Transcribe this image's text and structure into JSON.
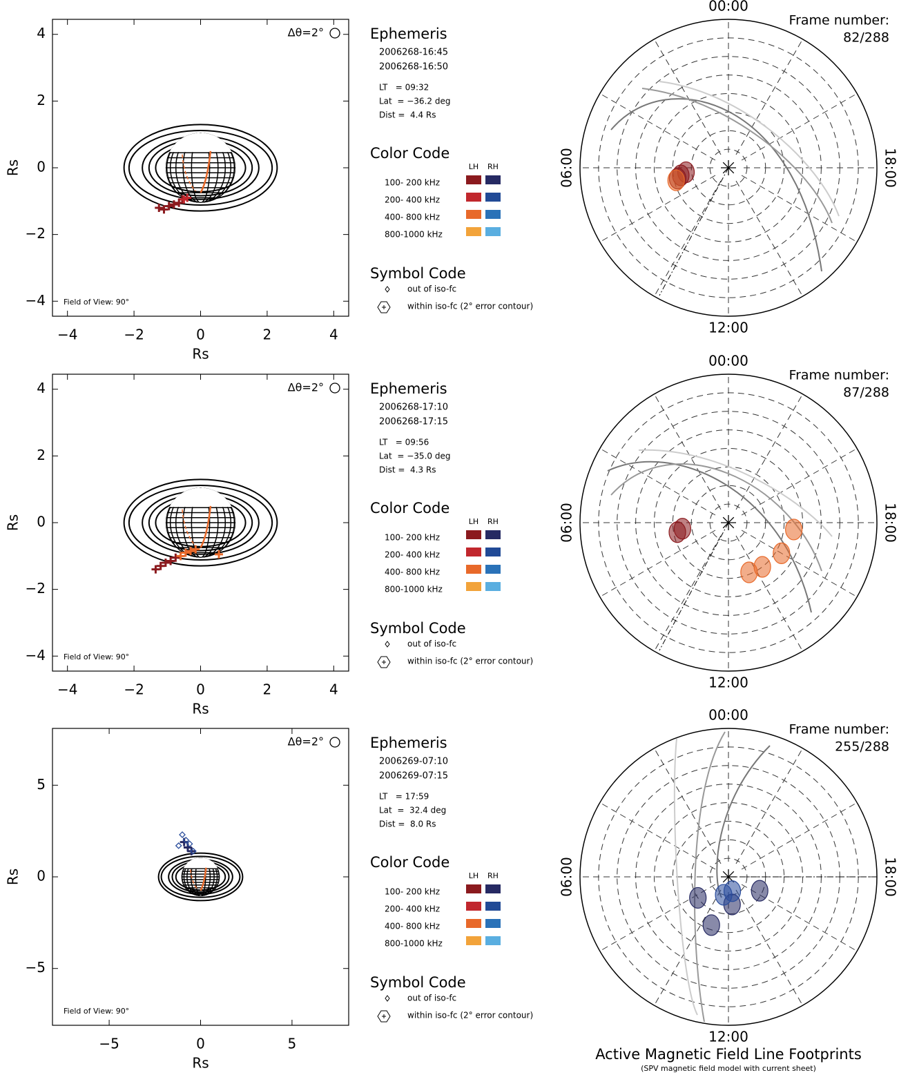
{
  "chart_data": [
    {
      "type": "scatter",
      "x_label": "Rs",
      "y_label": "Rs",
      "xlim": [
        -4.45,
        4.45
      ],
      "ylim": [
        -4.45,
        4.45
      ],
      "xticks": [
        {
          "value": -4,
          "label": "−4"
        },
        {
          "value": -2,
          "label": "−2"
        },
        0,
        2,
        4
      ],
      "yticks": [
        {
          "value": -4,
          "label": "−4"
        },
        {
          "value": -2,
          "label": "−2"
        },
        0,
        2,
        4
      ],
      "series": [
        {
          "color": "#8b1a1e",
          "marker": "plus",
          "x": [
            -1.25,
            -1.1,
            -0.95,
            -0.8,
            -0.65,
            -0.55
          ],
          "values": [
            -1.2,
            -1.25,
            -1.15,
            -1.1,
            -1.05,
            -0.95
          ]
        },
        {
          "color": "#c1272d",
          "marker": "plus",
          "x": [
            -0.5,
            -0.4
          ],
          "values": [
            -0.95,
            -0.9
          ]
        }
      ]
    },
    {
      "type": "scatter",
      "x_label": "Rs",
      "y_label": "Rs",
      "xlim": [
        -4.45,
        4.45
      ],
      "ylim": [
        -4.45,
        4.45
      ],
      "xticks": [
        {
          "value": -4,
          "label": "−4"
        },
        {
          "value": -2,
          "label": "−2"
        },
        0,
        2,
        4
      ],
      "yticks": [
        {
          "value": -4,
          "label": "−4"
        },
        {
          "value": -2,
          "label": "−2"
        },
        0,
        2,
        4
      ],
      "series": [
        {
          "color": "#8b1a1e",
          "marker": "plus",
          "x": [
            -1.35,
            -1.2,
            -1.05,
            -0.9,
            -0.75
          ],
          "values": [
            -1.4,
            -1.3,
            -1.2,
            -1.15,
            -1.05
          ]
        },
        {
          "color": "#e8692a",
          "marker": "plus",
          "x": [
            -0.6,
            -0.45,
            -0.3,
            -0.15,
            0.55
          ],
          "values": [
            -1.0,
            -0.9,
            -0.85,
            -0.8,
            -0.95
          ]
        }
      ]
    },
    {
      "type": "scatter",
      "x_label": "Rs",
      "y_label": "Rs",
      "xlim": [
        -8.1,
        8.1
      ],
      "ylim": [
        -8.1,
        8.1
      ],
      "xticks": [
        {
          "value": -5,
          "label": "−5"
        },
        0,
        5
      ],
      "yticks": [
        {
          "value": -5,
          "label": "−5"
        },
        0,
        5
      ],
      "series": [
        {
          "color": "#262a63",
          "marker": "plus",
          "x": [
            -0.9,
            -0.7,
            -0.5
          ],
          "values": [
            1.9,
            1.6,
            1.4
          ]
        },
        {
          "color": "#2a4d9c",
          "marker": "diamond",
          "x": [
            -1.0,
            -0.8,
            -1.2,
            -0.6,
            -0.4
          ],
          "values": [
            2.3,
            2.0,
            1.7,
            1.8,
            1.4
          ]
        }
      ]
    },
    {
      "type": "polar",
      "rlim": [
        0,
        40
      ],
      "rticks": [
        5,
        10,
        15,
        20,
        25,
        30,
        35
      ],
      "angle_labels": [
        {
          "value": 0,
          "label": "00:00"
        },
        {
          "value": 6,
          "label": "06:00"
        },
        {
          "value": 12,
          "label": "12:00"
        },
        {
          "value": 18,
          "label": "18:00"
        }
      ],
      "series": [
        {
          "color": "#8b1a1e",
          "theta": [
            6.6,
            6.4,
            6.8
          ],
          "values": [
            13,
            11.5,
            14
          ]
        },
        {
          "color": "#e8692a",
          "theta": [
            6.9
          ],
          "values": [
            14.5
          ]
        }
      ]
    },
    {
      "type": "polar",
      "rlim": [
        0,
        40
      ],
      "rticks": [
        5,
        10,
        15,
        20,
        25,
        30,
        35
      ],
      "angle_labels": [
        {
          "value": 0,
          "label": "00:00"
        },
        {
          "value": 6,
          "label": "06:00"
        },
        {
          "value": 12,
          "label": "12:00"
        },
        {
          "value": 18,
          "label": "18:00"
        }
      ],
      "series": [
        {
          "color": "#8b1a1e",
          "theta": [
            6.5,
            6.7
          ],
          "values": [
            12.5,
            14
          ]
        },
        {
          "color": "#e8692a",
          "theta": [
            13.5,
            14.5,
            16,
            17.6
          ],
          "values": [
            14.5,
            15,
            16.5,
            17.7
          ]
        }
      ]
    },
    {
      "type": "polar",
      "rlim": [
        0,
        40
      ],
      "rticks": [
        5,
        10,
        15,
        20,
        25,
        30,
        35
      ],
      "angle_labels": [
        {
          "value": 0,
          "label": "00:00"
        },
        {
          "value": 6,
          "label": "06:00"
        },
        {
          "value": 12,
          "label": "12:00"
        },
        {
          "value": 18,
          "label": "18:00"
        }
      ],
      "series": [
        {
          "color": "#262a63",
          "theta": [
            8.3,
            16.4,
            12.5,
            10.7
          ],
          "values": [
            10,
            9.2,
            7.5,
            13.8
          ]
        },
        {
          "color": "#2a4d9c",
          "theta": [
            11,
            13
          ],
          "values": [
            5,
            4
          ]
        }
      ]
    }
  ],
  "panels": [
    {
      "times": [
        "2006268-16:45",
        "2006268-16:50"
      ],
      "lt": "LT   = 09:32",
      "lat": "Lat  = −36.2 deg",
      "dist": "Dist =  4.4 Rs",
      "frame": "82/288"
    },
    {
      "times": [
        "2006268-17:10",
        "2006268-17:15"
      ],
      "lt": "LT   = 09:56",
      "lat": "Lat  = −35.0 deg",
      "dist": "Dist =  4.3 Rs",
      "frame": "87/288"
    },
    {
      "times": [
        "2006269-07:10",
        "2006269-07:15"
      ],
      "lt": "LT   = 17:59",
      "lat": "Lat  =  32.4 deg",
      "dist": "Dist =  8.0 Rs",
      "frame": "255/288"
    }
  ],
  "legend": {
    "resolution": "Δθ=2°",
    "fov": "Field of View: 90°",
    "ephemeris_title": "Ephemeris",
    "frame_label": "Frame number:",
    "color_title": "Color Code",
    "columns": [
      "LH",
      "RH"
    ],
    "bands": [
      {
        "label": "100- 200 kHz",
        "colors": [
          "#8b1a1e",
          "#262a63"
        ]
      },
      {
        "label": "200- 400 kHz",
        "colors": [
          "#c1272d",
          "#214a96"
        ]
      },
      {
        "label": "400- 800 kHz",
        "colors": [
          "#e8692a",
          "#2a72b8"
        ]
      },
      {
        "label": "800-1000 kHz",
        "colors": [
          "#f2a33a",
          "#5aaee0"
        ]
      }
    ],
    "symbol_title": "Symbol Code",
    "symbols": [
      "out of iso-fc",
      "within iso-fc (2° error contour)"
    ]
  },
  "footer": {
    "title": "Active Magnetic Field Line Footprints",
    "subtitle": "(SPV magnetic field model with current sheet)"
  }
}
